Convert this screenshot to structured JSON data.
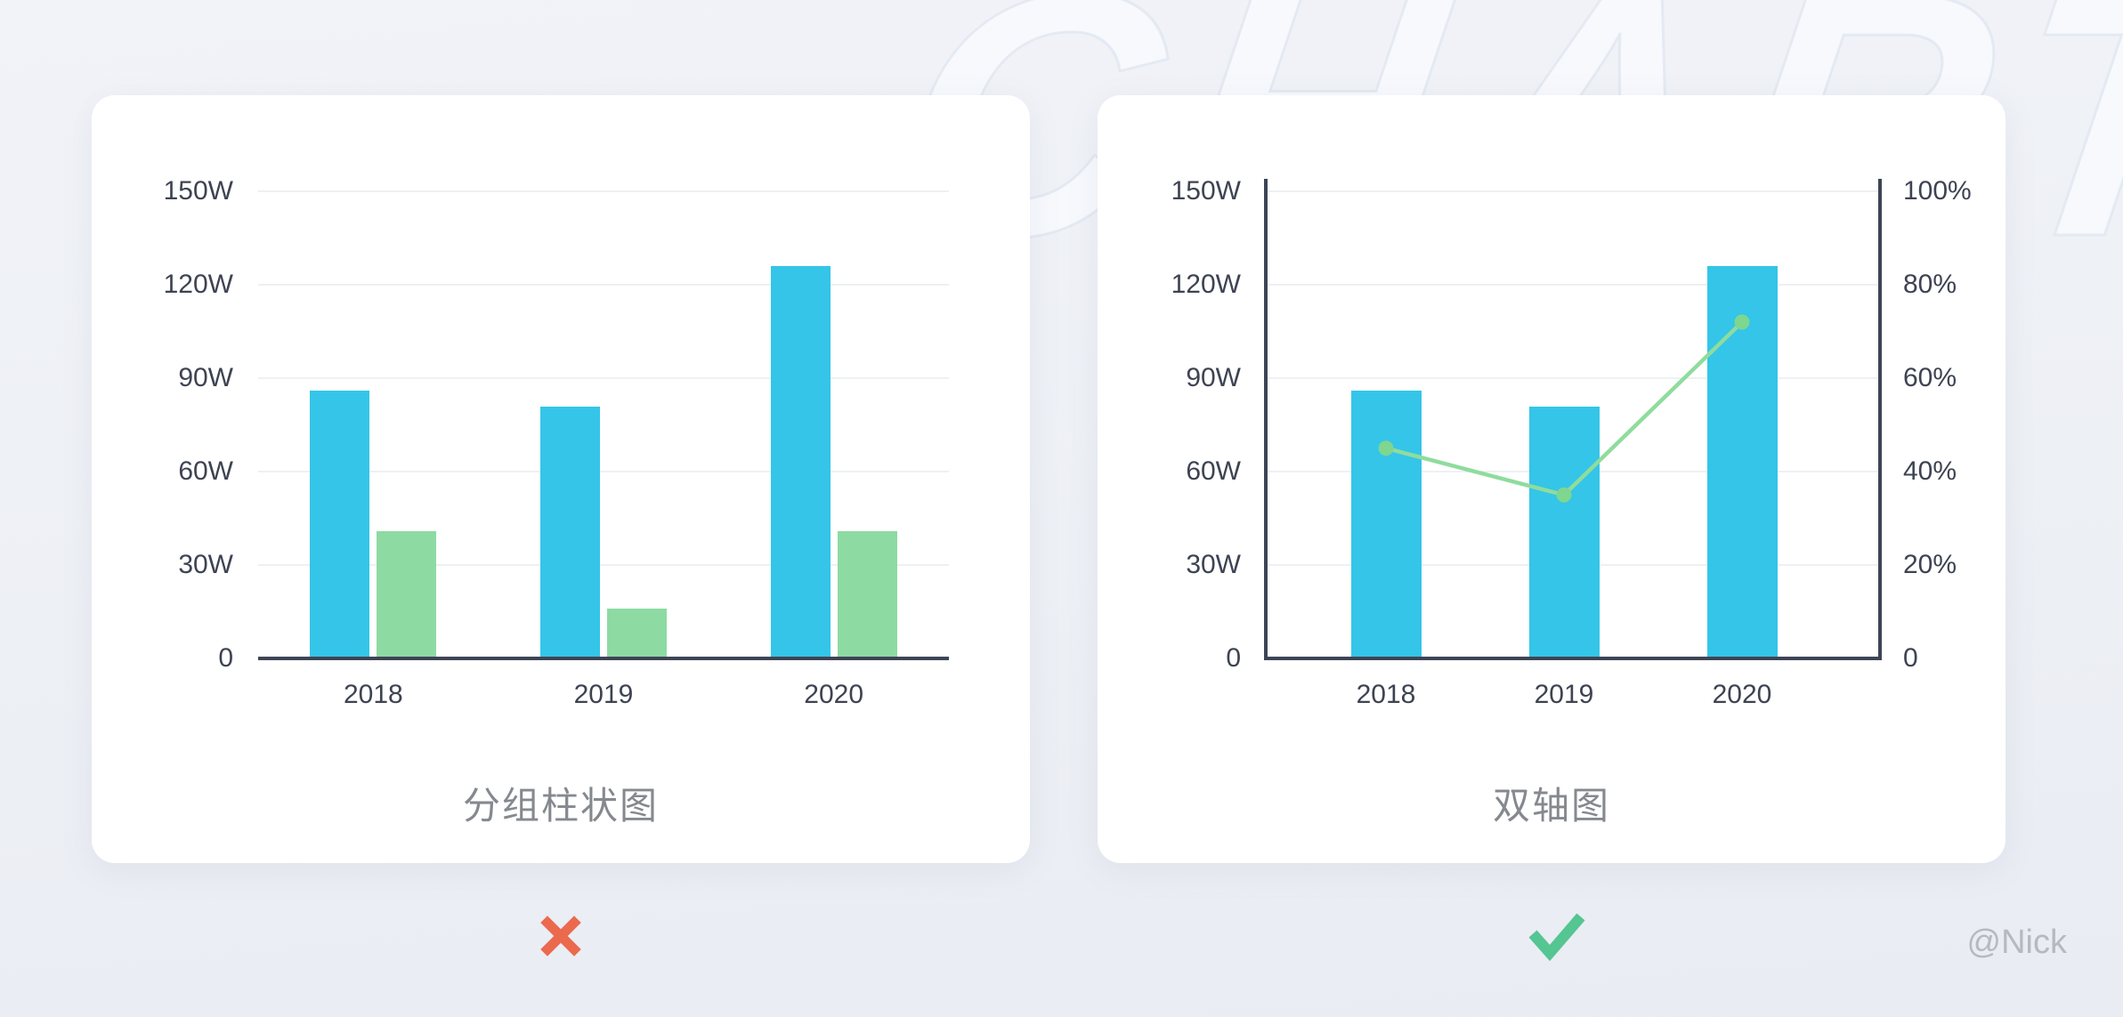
{
  "page": {
    "background_watermark": "CHART",
    "author_watermark": "@Nick"
  },
  "colors": {
    "bar_blue": "#34c5e8",
    "bar_green": "#8ddba2",
    "line_green": "#8fdc9d",
    "dot_green": "#7ed68f",
    "axis_text": "#3d4352",
    "axis_line": "#3d4454",
    "grid_line": "#eef0f3",
    "title_text": "#85898f",
    "reject_red": "#eb6a4e",
    "approve_green": "#55c592",
    "author_text": "#b5b9c0"
  },
  "chart_data": [
    {
      "type": "bar",
      "title": "分组柱状图",
      "verdict": "rejected",
      "categories": [
        "2018",
        "2019",
        "2020"
      ],
      "series": [
        {
          "name": "blue-bar-series",
          "type": "bar",
          "color": "#34c5e8",
          "values": [
            86,
            81,
            126
          ]
        },
        {
          "name": "green-bar-series",
          "type": "bar",
          "color": "#8ddba2",
          "values": [
            41,
            16,
            41
          ]
        }
      ],
      "y_axis": {
        "unit": "W",
        "min": 0,
        "max": 150,
        "ticks": [
          "150W",
          "120W",
          "90W",
          "60W",
          "30W",
          "0"
        ]
      },
      "grid": true,
      "legend": false,
      "axis_lines": {
        "left": false,
        "right": false,
        "bottom": true
      }
    },
    {
      "type": "bar+line",
      "title": "双轴图",
      "verdict": "approved",
      "categories": [
        "2018",
        "2019",
        "2020"
      ],
      "series": [
        {
          "name": "blue-bar-series",
          "type": "bar",
          "axis": "left",
          "color": "#34c5e8",
          "values": [
            86,
            81,
            126
          ]
        },
        {
          "name": "green-line-series",
          "type": "line",
          "axis": "right",
          "color": "#8fdc9d",
          "dot_color": "#7ed68f",
          "values": [
            45,
            35,
            72
          ]
        }
      ],
      "y_axis": {
        "unit": "W",
        "min": 0,
        "max": 150,
        "ticks": [
          "150W",
          "120W",
          "90W",
          "60W",
          "30W",
          "0"
        ]
      },
      "y_axis_right": {
        "unit": "%",
        "min": 0,
        "max": 100,
        "ticks": [
          "100%",
          "80%",
          "60%",
          "40%",
          "20%",
          "0"
        ]
      },
      "grid": true,
      "legend": false,
      "axis_lines": {
        "left": true,
        "right": true,
        "bottom": true
      }
    }
  ]
}
